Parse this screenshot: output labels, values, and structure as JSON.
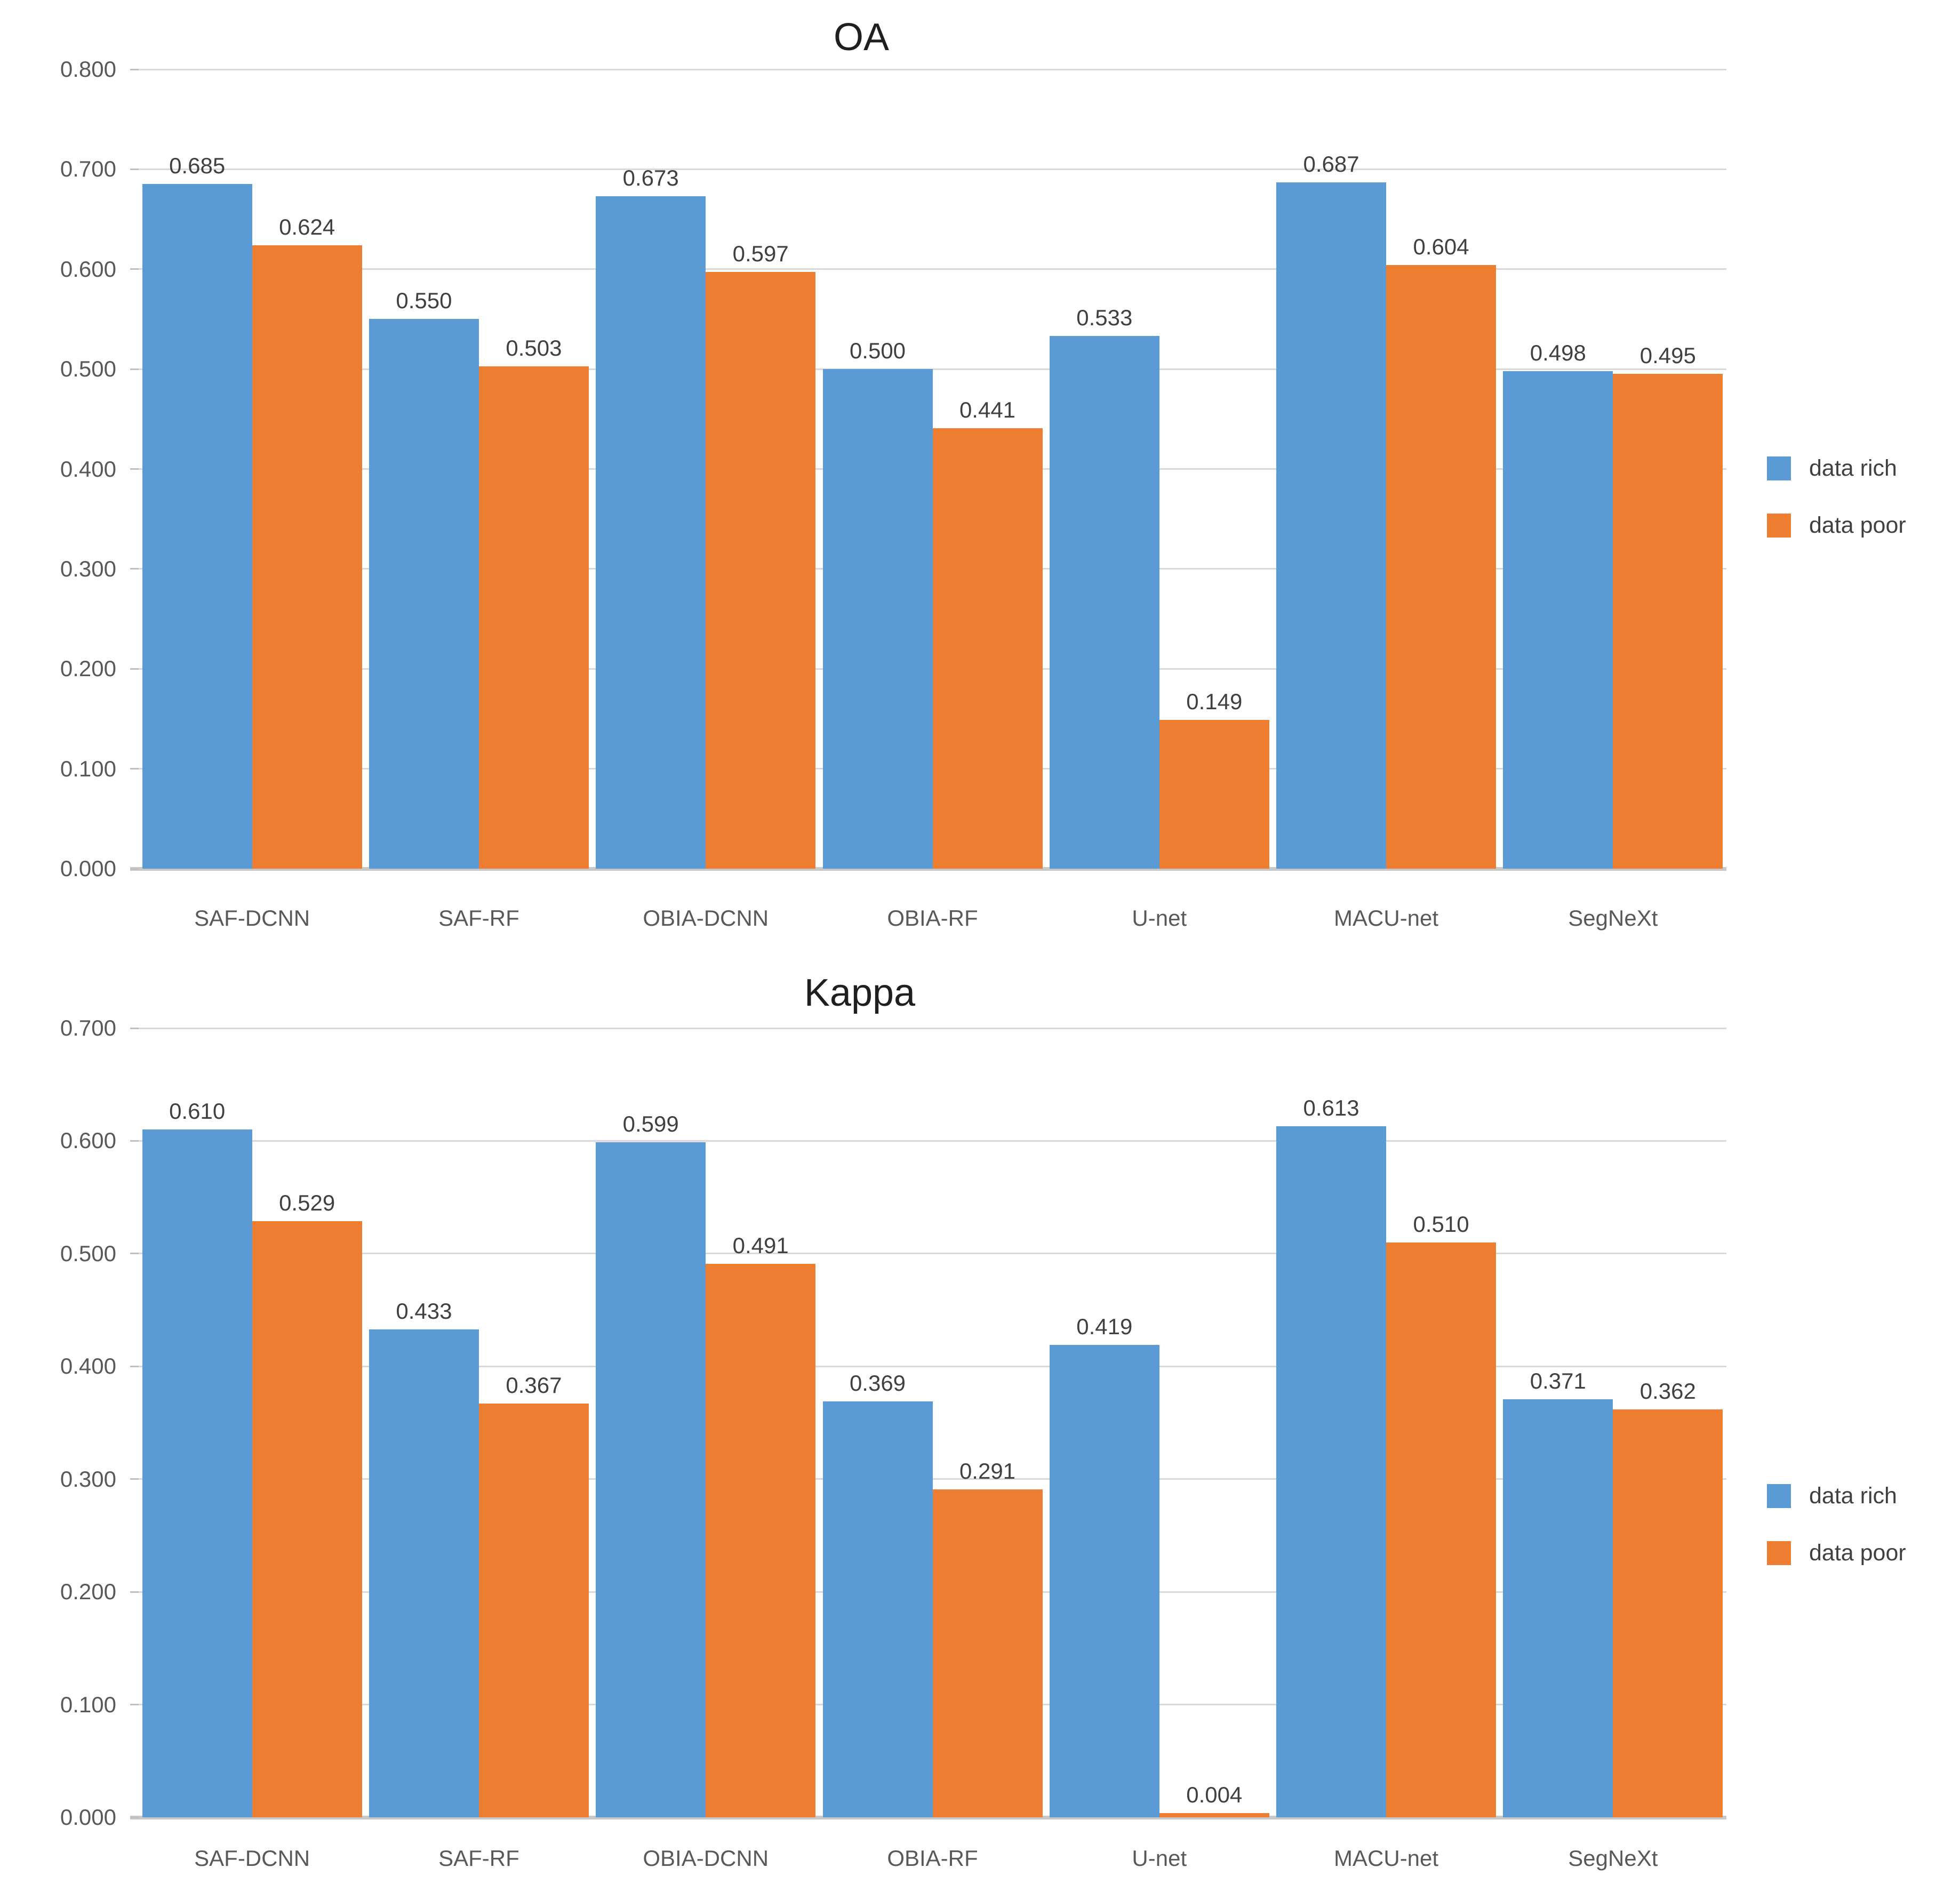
{
  "figure": {
    "background_color": "#ffffff",
    "gridline_color": "#d9d9d9",
    "axis_line_color": "#c8c8c8",
    "tick_label_color": "#595959",
    "value_label_color": "#404040",
    "title_color": "#1f1f1f"
  },
  "chart_data": [
    {
      "type": "bar",
      "title": "OA",
      "categories": [
        "SAF-DCNN",
        "SAF-RF",
        "OBIA-DCNN",
        "OBIA-RF",
        "U-net",
        "MACU-net",
        "SegNeXt"
      ],
      "series": [
        {
          "name": "data rich",
          "color": "#5B9BD5",
          "values": [
            0.685,
            0.55,
            0.673,
            0.5,
            0.533,
            0.687,
            0.498
          ]
        },
        {
          "name": "data poor",
          "color": "#ED7D31",
          "values": [
            0.624,
            0.503,
            0.597,
            0.441,
            0.149,
            0.604,
            0.495
          ]
        }
      ],
      "ylim": [
        0,
        0.8
      ],
      "ytick_step": 0.1,
      "tick_format_decimals": 3,
      "grid": true,
      "data_labels": true,
      "legend_position": "right",
      "legend_labels": [
        "data rich",
        "data poor"
      ]
    },
    {
      "type": "bar",
      "title": "Kappa",
      "categories": [
        "SAF-DCNN",
        "SAF-RF",
        "OBIA-DCNN",
        "OBIA-RF",
        "U-net",
        "MACU-net",
        "SegNeXt"
      ],
      "series": [
        {
          "name": "data rich",
          "color": "#5B9BD5",
          "values": [
            0.61,
            0.433,
            0.599,
            0.369,
            0.419,
            0.613,
            0.371
          ]
        },
        {
          "name": "data poor",
          "color": "#ED7D31",
          "values": [
            0.529,
            0.367,
            0.491,
            0.291,
            0.004,
            0.51,
            0.362
          ]
        }
      ],
      "ylim": [
        0,
        0.7
      ],
      "ytick_step": 0.1,
      "tick_format_decimals": 3,
      "grid": true,
      "data_labels": true,
      "legend_position": "right",
      "legend_labels": [
        "data rich",
        "data poor"
      ]
    }
  ]
}
